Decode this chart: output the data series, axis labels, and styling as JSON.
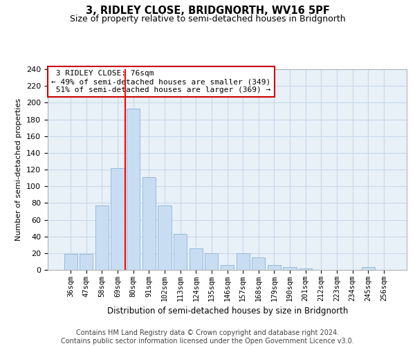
{
  "title": "3, RIDLEY CLOSE, BRIDGNORTH, WV16 5PF",
  "subtitle": "Size of property relative to semi-detached houses in Bridgnorth",
  "xlabel": "Distribution of semi-detached houses by size in Bridgnorth",
  "ylabel": "Number of semi-detached properties",
  "categories": [
    "36sqm",
    "47sqm",
    "58sqm",
    "69sqm",
    "80sqm",
    "91sqm",
    "102sqm",
    "113sqm",
    "124sqm",
    "135sqm",
    "146sqm",
    "157sqm",
    "168sqm",
    "179sqm",
    "190sqm",
    "201sqm",
    "212sqm",
    "223sqm",
    "234sqm",
    "245sqm",
    "256sqm"
  ],
  "values": [
    19,
    19,
    77,
    122,
    193,
    111,
    77,
    43,
    26,
    20,
    6,
    20,
    15,
    6,
    3,
    2,
    0,
    0,
    0,
    3,
    0
  ],
  "bar_color": "#c9ddf2",
  "bar_edge_color": "#8ab4d8",
  "grid_color": "#c8d8e8",
  "background_color": "#e8f0f8",
  "property_label": "3 RIDLEY CLOSE: 76sqm",
  "pct_smaller": 49,
  "pct_larger": 51,
  "n_smaller": 349,
  "n_larger": 369,
  "annotation_box_color": "#ffffff",
  "annotation_border_color": "#cc0000",
  "red_line_x": 3.5,
  "footer_line1": "Contains HM Land Registry data © Crown copyright and database right 2024.",
  "footer_line2": "Contains public sector information licensed under the Open Government Licence v3.0.",
  "ylim": [
    0,
    240
  ],
  "yticks": [
    0,
    20,
    40,
    60,
    80,
    100,
    120,
    140,
    160,
    180,
    200,
    220,
    240
  ]
}
